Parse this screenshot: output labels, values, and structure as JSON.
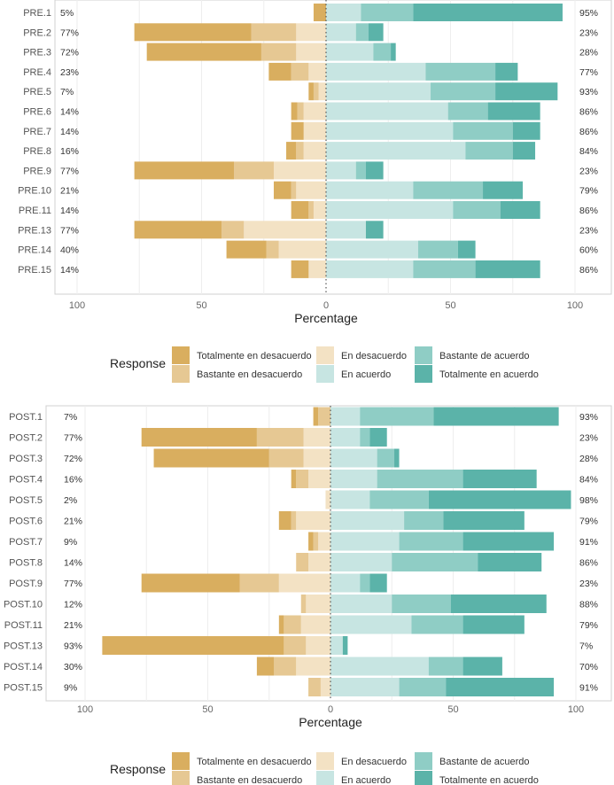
{
  "colors": {
    "Totalmente en desacuerdo": "#D9AE5F",
    "Bastante en desacuerdo": "#E6C893",
    "En desacuerdo": "#F3E2C4",
    "En acuerdo": "#C7E5E2",
    "Bastante de acuerdo": "#8FCDC5",
    "Totalmente en acuerdo": "#5BB3A9"
  },
  "chart_data": [
    {
      "type": "bar",
      "subtype": "diverging-stacked-likert",
      "title": "",
      "xlabel": "Percentage",
      "ylabel": "",
      "xlim": [
        -100,
        100
      ],
      "xticks": [
        "100",
        "50",
        "0",
        "50",
        "100"
      ],
      "legend_title": "Response",
      "legend_position": "bottom",
      "legend": [
        "Totalmente en desacuerdo",
        "Bastante en desacuerdo",
        "En desacuerdo",
        "En acuerdo",
        "Bastante de acuerdo",
        "Totalmente en acuerdo"
      ],
      "categories": [
        "PRE.1",
        "PRE.2",
        "PRE.3",
        "PRE.4",
        "PRE.5",
        "PRE.6",
        "PRE.7",
        "PRE.8",
        "PRE.9",
        "PRE.10",
        "PRE.11",
        "PRE.13",
        "PRE.14",
        "PRE.15"
      ],
      "left_pct_labels": [
        "5%",
        "77%",
        "72%",
        "23%",
        "7%",
        "14%",
        "14%",
        "16%",
        "77%",
        "21%",
        "14%",
        "77%",
        "40%",
        "14%"
      ],
      "right_pct_labels": [
        "95%",
        "23%",
        "28%",
        "77%",
        "93%",
        "86%",
        "86%",
        "84%",
        "23%",
        "79%",
        "86%",
        "23%",
        "60%",
        "86%"
      ],
      "series": [
        {
          "name": "Totalmente en desacuerdo",
          "values": [
            5,
            47,
            46,
            9,
            2,
            2.5,
            5,
            4,
            40,
            7,
            7,
            35,
            16,
            7
          ]
        },
        {
          "name": "Bastante en desacuerdo",
          "values": [
            0,
            18,
            14,
            7,
            2,
            2.5,
            0,
            3,
            16,
            2,
            2,
            9,
            5,
            0
          ]
        },
        {
          "name": "En desacuerdo",
          "values": [
            0,
            12,
            12,
            7,
            3,
            9,
            9,
            9,
            21,
            12,
            5,
            33,
            19,
            7
          ]
        },
        {
          "name": "En acuerdo",
          "values": [
            14,
            12,
            19,
            40,
            42,
            49,
            51,
            56,
            12,
            35,
            51,
            16,
            37,
            35
          ]
        },
        {
          "name": "Bastante de acuerdo",
          "values": [
            21,
            5,
            7,
            28,
            26,
            16,
            24,
            19,
            4,
            28,
            19,
            0,
            16,
            25
          ]
        },
        {
          "name": "Totalmente en acuerdo",
          "values": [
            60,
            6,
            2,
            9,
            25,
            21,
            11,
            9,
            7,
            16,
            16,
            7,
            7,
            26
          ]
        }
      ]
    },
    {
      "type": "bar",
      "subtype": "diverging-stacked-likert",
      "title": "",
      "xlabel": "Percentage",
      "ylabel": "",
      "xlim": [
        -100,
        100
      ],
      "xticks": [
        "100",
        "50",
        "0",
        "50",
        "100"
      ],
      "legend_title": "Response",
      "legend_position": "bottom",
      "legend": [
        "Totalmente en desacuerdo",
        "Bastante en desacuerdo",
        "En desacuerdo",
        "En acuerdo",
        "Bastante de acuerdo",
        "Totalmente en acuerdo"
      ],
      "categories": [
        "POST.1",
        "POST.2",
        "POST.3",
        "POST.4",
        "POST.5",
        "POST.6",
        "POST.7",
        "POST.8",
        "POST.9",
        "POST.10",
        "POST.11",
        "POST.13",
        "POST.14",
        "POST.15"
      ],
      "left_pct_labels": [
        "7%",
        "77%",
        "72%",
        "16%",
        "2%",
        "21%",
        "9%",
        "14%",
        "77%",
        "12%",
        "21%",
        "93%",
        "30%",
        "9%"
      ],
      "right_pct_labels": [
        "93%",
        "23%",
        "28%",
        "84%",
        "98%",
        "79%",
        "91%",
        "86%",
        "23%",
        "88%",
        "79%",
        "7%",
        "70%",
        "91%"
      ],
      "series": [
        {
          "name": "Totalmente en desacuerdo",
          "values": [
            2,
            47,
            47,
            2,
            0,
            5,
            2,
            0,
            40,
            0,
            2,
            74,
            7,
            0
          ]
        },
        {
          "name": "Bastante en desacuerdo",
          "values": [
            5,
            19,
            14,
            5,
            0,
            2,
            2,
            5,
            16,
            2,
            7,
            9,
            9,
            5
          ]
        },
        {
          "name": "En desacuerdo",
          "values": [
            0,
            11,
            11,
            9,
            2,
            14,
            5,
            9,
            21,
            10,
            12,
            10,
            14,
            4
          ]
        },
        {
          "name": "En acuerdo",
          "values": [
            12,
            12,
            19,
            19,
            16,
            30,
            28,
            25,
            12,
            25,
            33,
            5,
            40,
            28
          ]
        },
        {
          "name": "Bastante de acuerdo",
          "values": [
            30,
            4,
            7,
            35,
            24,
            16,
            26,
            35,
            4,
            24,
            21,
            0,
            14,
            19
          ]
        },
        {
          "name": "Totalmente en acuerdo",
          "values": [
            51,
            7,
            2,
            30,
            58,
            33,
            37,
            26,
            7,
            39,
            25,
            2,
            16,
            44
          ]
        }
      ]
    }
  ]
}
